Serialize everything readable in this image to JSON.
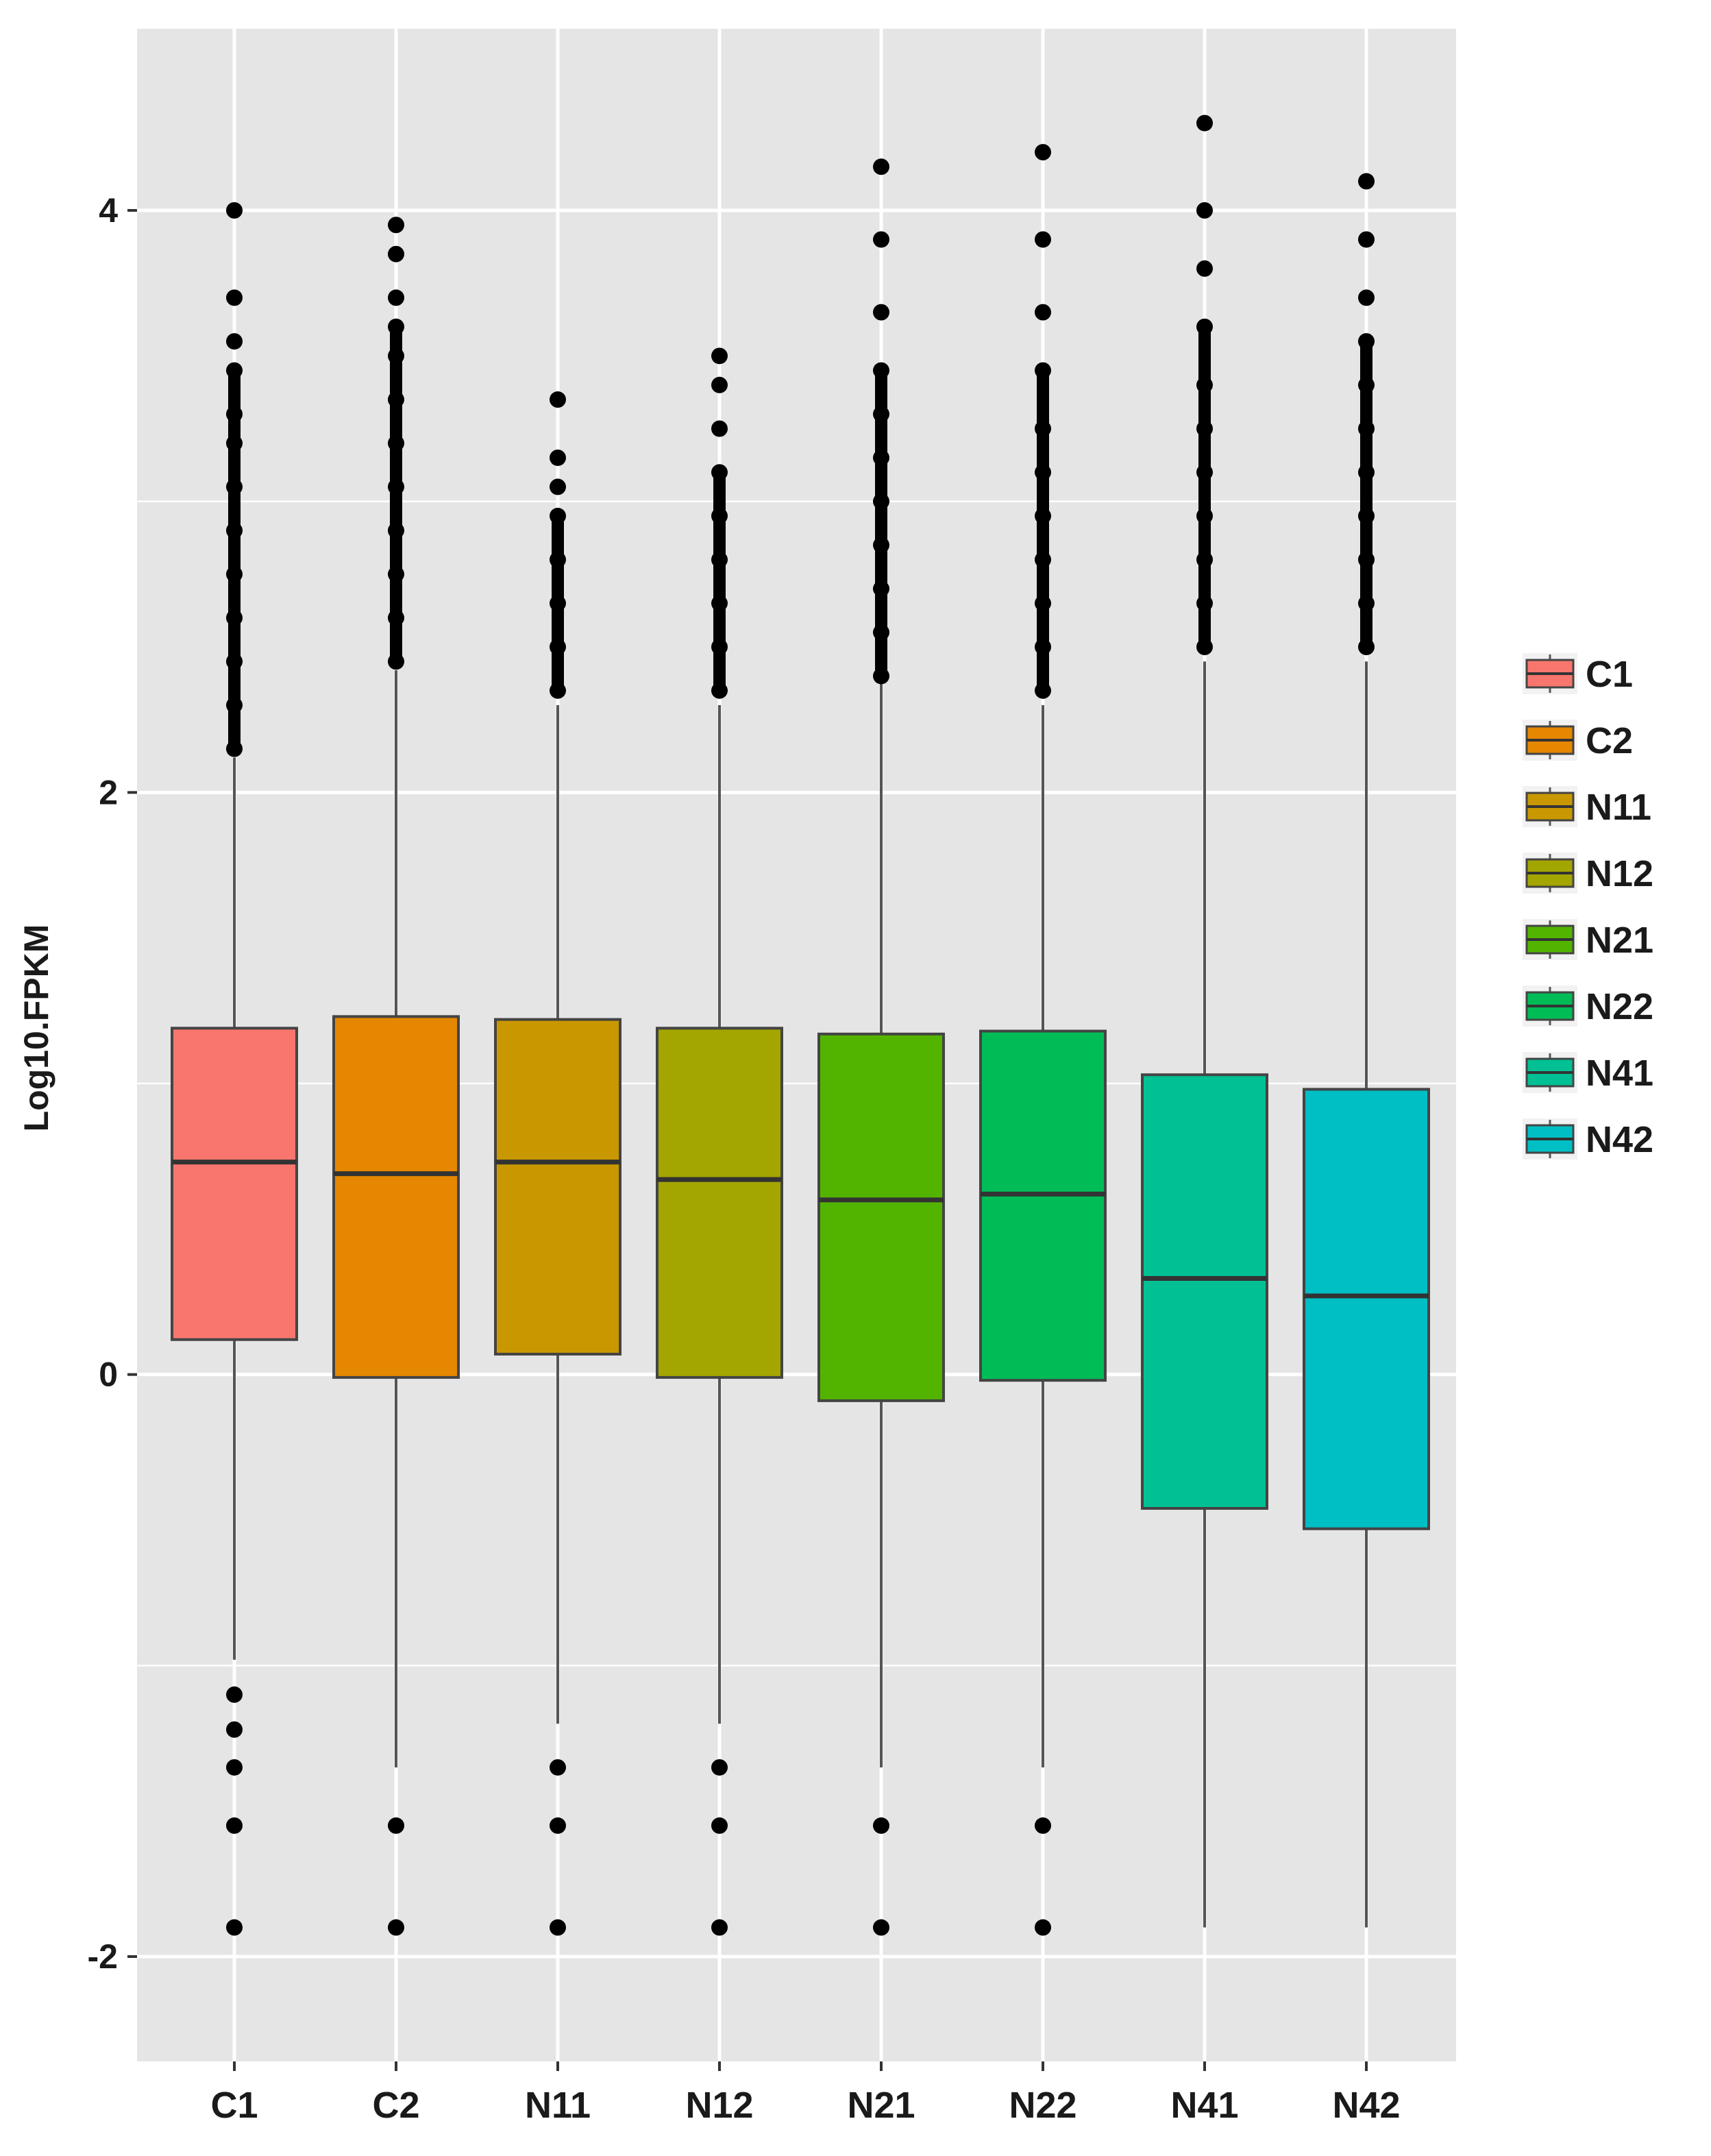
{
  "chart_data": {
    "type": "boxplot",
    "title": "",
    "xlabel": "",
    "ylabel": "Log10.FPKM",
    "ylim": [
      -2.35,
      4.6
    ],
    "yticks": [
      -2,
      0,
      2,
      4
    ],
    "grid": true,
    "legend_position": "right",
    "categories": [
      "C1",
      "C2",
      "N11",
      "N12",
      "N21",
      "N22",
      "N41",
      "N42"
    ],
    "series": [
      {
        "name": "C1",
        "color": "#F8766D",
        "q1": 0.12,
        "median": 0.73,
        "q3": 1.19,
        "whisker_low": -0.98,
        "whisker_high": 2.12,
        "outliers_high": [
          2.15,
          2.3,
          2.45,
          2.6,
          2.75,
          2.9,
          3.05,
          3.2,
          3.3,
          3.45,
          3.55,
          3.7,
          4.0
        ],
        "outliers_low": [
          -1.1,
          -1.22,
          -1.35,
          -1.55,
          -1.9
        ]
      },
      {
        "name": "C2",
        "color": "#E58700",
        "q1": -0.01,
        "median": 0.69,
        "q3": 1.23,
        "whisker_low": -1.35,
        "whisker_high": 2.42,
        "outliers_high": [
          2.45,
          2.6,
          2.75,
          2.9,
          3.05,
          3.2,
          3.35,
          3.5,
          3.6,
          3.7,
          3.85,
          3.95
        ],
        "outliers_low": [
          -1.55,
          -1.9
        ]
      },
      {
        "name": "N11",
        "color": "#C99800",
        "q1": 0.07,
        "median": 0.73,
        "q3": 1.22,
        "whisker_low": -1.2,
        "whisker_high": 2.3,
        "outliers_high": [
          2.35,
          2.5,
          2.65,
          2.8,
          2.95,
          3.05,
          3.15,
          3.35
        ],
        "outliers_low": [
          -1.35,
          -1.55,
          -1.9
        ]
      },
      {
        "name": "N12",
        "color": "#A3A500",
        "q1": -0.01,
        "median": 0.67,
        "q3": 1.19,
        "whisker_low": -1.2,
        "whisker_high": 2.3,
        "outliers_high": [
          2.35,
          2.5,
          2.65,
          2.8,
          2.95,
          3.1,
          3.25,
          3.4,
          3.5
        ],
        "outliers_low": [
          -1.35,
          -1.55,
          -1.9
        ]
      },
      {
        "name": "N21",
        "color": "#53B400",
        "q1": -0.09,
        "median": 0.6,
        "q3": 1.17,
        "whisker_low": -1.35,
        "whisker_high": 2.38,
        "outliers_high": [
          2.4,
          2.55,
          2.7,
          2.85,
          3.0,
          3.15,
          3.3,
          3.45,
          3.65,
          3.9,
          4.15
        ],
        "outliers_low": [
          -1.55,
          -1.9
        ]
      },
      {
        "name": "N22",
        "color": "#00BC56",
        "q1": -0.02,
        "median": 0.62,
        "q3": 1.18,
        "whisker_low": -1.35,
        "whisker_high": 2.3,
        "outliers_high": [
          2.35,
          2.5,
          2.65,
          2.8,
          2.95,
          3.1,
          3.25,
          3.45,
          3.65,
          3.9,
          4.2
        ],
        "outliers_low": [
          -1.55,
          -1.9
        ]
      },
      {
        "name": "N41",
        "color": "#00C094",
        "q1": -0.46,
        "median": 0.33,
        "q3": 1.03,
        "whisker_low": -1.9,
        "whisker_high": 2.45,
        "outliers_high": [
          2.5,
          2.65,
          2.8,
          2.95,
          3.1,
          3.25,
          3.4,
          3.6,
          3.8,
          4.0,
          4.3
        ],
        "outliers_low": []
      },
      {
        "name": "N42",
        "color": "#00BFC4",
        "q1": -0.53,
        "median": 0.27,
        "q3": 0.98,
        "whisker_low": -1.9,
        "whisker_high": 2.45,
        "outliers_high": [
          2.5,
          2.65,
          2.8,
          2.95,
          3.1,
          3.25,
          3.4,
          3.55,
          3.7,
          3.9,
          4.1
        ],
        "outliers_low": []
      }
    ]
  }
}
